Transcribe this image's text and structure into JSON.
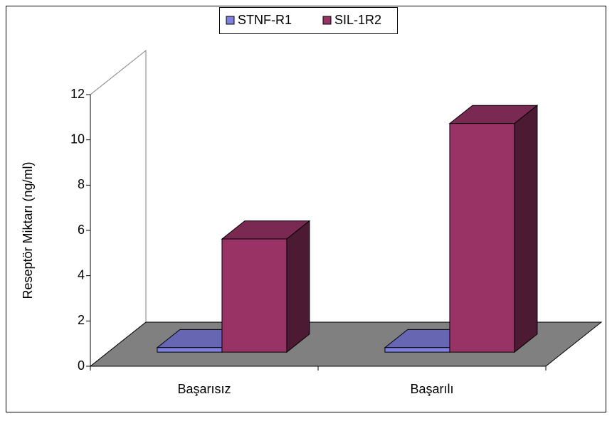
{
  "chart_data": {
    "type": "bar3d",
    "y_label": "Reseptör Miktarı (ng/ml)",
    "categories": [
      "Başarısız",
      "Başarılı"
    ],
    "series": [
      {
        "name": "STNF-R1",
        "color": "#8080e0",
        "values": [
          0.2,
          0.2
        ]
      },
      {
        "name": "SIL-1R2",
        "color": "#993366",
        "values": [
          5,
          10.1
        ]
      }
    ],
    "ylim": [
      0,
      12
    ],
    "yticks": [
      0,
      2,
      4,
      6,
      8,
      10,
      12
    ],
    "legend": "top"
  }
}
